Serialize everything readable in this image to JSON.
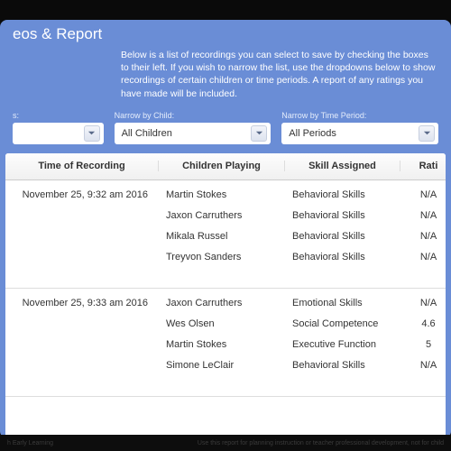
{
  "modal": {
    "title": "eos & Report",
    "instructions": "Below is a list of recordings you can select to save by checking the boxes to their left. If you wish to narrow the list, use the dropdowns below to show recordings of certain children or time periods. A report of any ratings you have made will be included."
  },
  "filters": {
    "spare_label": "s:",
    "child_label": "Narrow by Child:",
    "child_value": "All Children",
    "period_label": "Narrow by Time Period:",
    "period_value": "All Periods"
  },
  "columns": {
    "time": "Time of Recording",
    "children": "Children Playing",
    "skill": "Skill Assigned",
    "rating": "Rati"
  },
  "sessions": [
    {
      "time": "November 25, 9:32 am 2016",
      "rows": [
        {
          "child": "Martin Stokes",
          "skill": "Behavioral Skills",
          "rating": "N/A"
        },
        {
          "child": "Jaxon Carruthers",
          "skill": "Behavioral Skills",
          "rating": "N/A"
        },
        {
          "child": "Mikala Russel",
          "skill": "Behavioral Skills",
          "rating": "N/A"
        },
        {
          "child": "Treyvon Sanders",
          "skill": "Behavioral Skills",
          "rating": "N/A"
        }
      ]
    },
    {
      "time": "November 25, 9:33 am 2016",
      "rows": [
        {
          "child": "Jaxon Carruthers",
          "skill": "Emotional Skills",
          "rating": "N/A"
        },
        {
          "child": "Wes Olsen",
          "skill": "Social Competence",
          "rating": "4.6"
        },
        {
          "child": "Martin Stokes",
          "skill": "Executive Function",
          "rating": "5"
        },
        {
          "child": "Simone LeClair",
          "skill": "Behavioral Skills",
          "rating": "N/A"
        }
      ]
    }
  ],
  "footer": {
    "left": "h  Early Learning",
    "right": "Use this report for planning instruction or teacher professional development, not for child"
  }
}
